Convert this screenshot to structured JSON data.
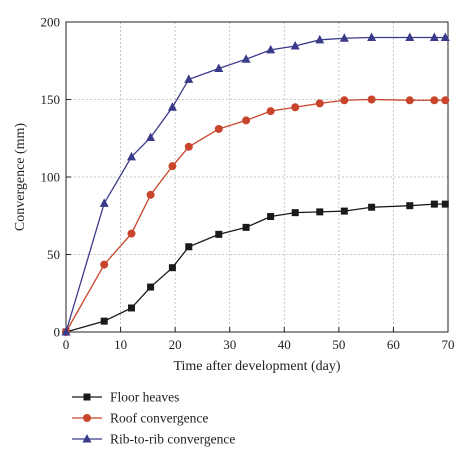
{
  "chart_data": {
    "type": "line",
    "xlabel": "Time after development (day)",
    "ylabel": "Convergence (mm)",
    "xlim": [
      0,
      70
    ],
    "ylim": [
      0,
      200
    ],
    "x_ticks": [
      "0",
      "10",
      "20",
      "30",
      "40",
      "50",
      "60",
      "70"
    ],
    "y_ticks": [
      "0",
      "50",
      "100",
      "150",
      "200"
    ],
    "grid": true,
    "legend_position": "bottom-left-outside",
    "series": [
      {
        "name": "Floor heaves",
        "color": "#1a1a1a",
        "marker": "square",
        "x": [
          0,
          7,
          12,
          15.5,
          19.5,
          22.5,
          28,
          33,
          37.5,
          42,
          46.5,
          51,
          56,
          63,
          67.5,
          69.5
        ],
        "y": [
          0,
          7,
          15.5,
          29,
          41.5,
          55,
          63,
          67.5,
          74.5,
          77,
          77.5,
          78,
          80.5,
          81.5,
          82.5,
          82.5
        ]
      },
      {
        "name": "Roof convergence",
        "color": "#c8442a",
        "marker": "circle",
        "x": [
          0,
          7,
          12,
          15.5,
          19.5,
          22.5,
          28,
          33,
          37.5,
          42,
          46.5,
          51,
          56,
          63,
          67.5,
          69.5
        ],
        "y": [
          0,
          43.5,
          63.5,
          88.5,
          107,
          119.5,
          131,
          136.5,
          142.5,
          145,
          147.5,
          149.5,
          150,
          149.5,
          149.5,
          149.5
        ]
      },
      {
        "name": "Rib-to-rib convergence",
        "color": "#3a3a8a",
        "marker": "triangle",
        "x": [
          0,
          7,
          12,
          15.5,
          19.5,
          22.5,
          28,
          33,
          37.5,
          42,
          46.5,
          51,
          56,
          63,
          67.5,
          69.5
        ],
        "y": [
          0,
          83,
          113,
          125.5,
          145,
          163,
          170,
          176,
          182,
          184.5,
          188.5,
          189.5,
          190,
          190,
          190,
          190
        ]
      }
    ]
  }
}
